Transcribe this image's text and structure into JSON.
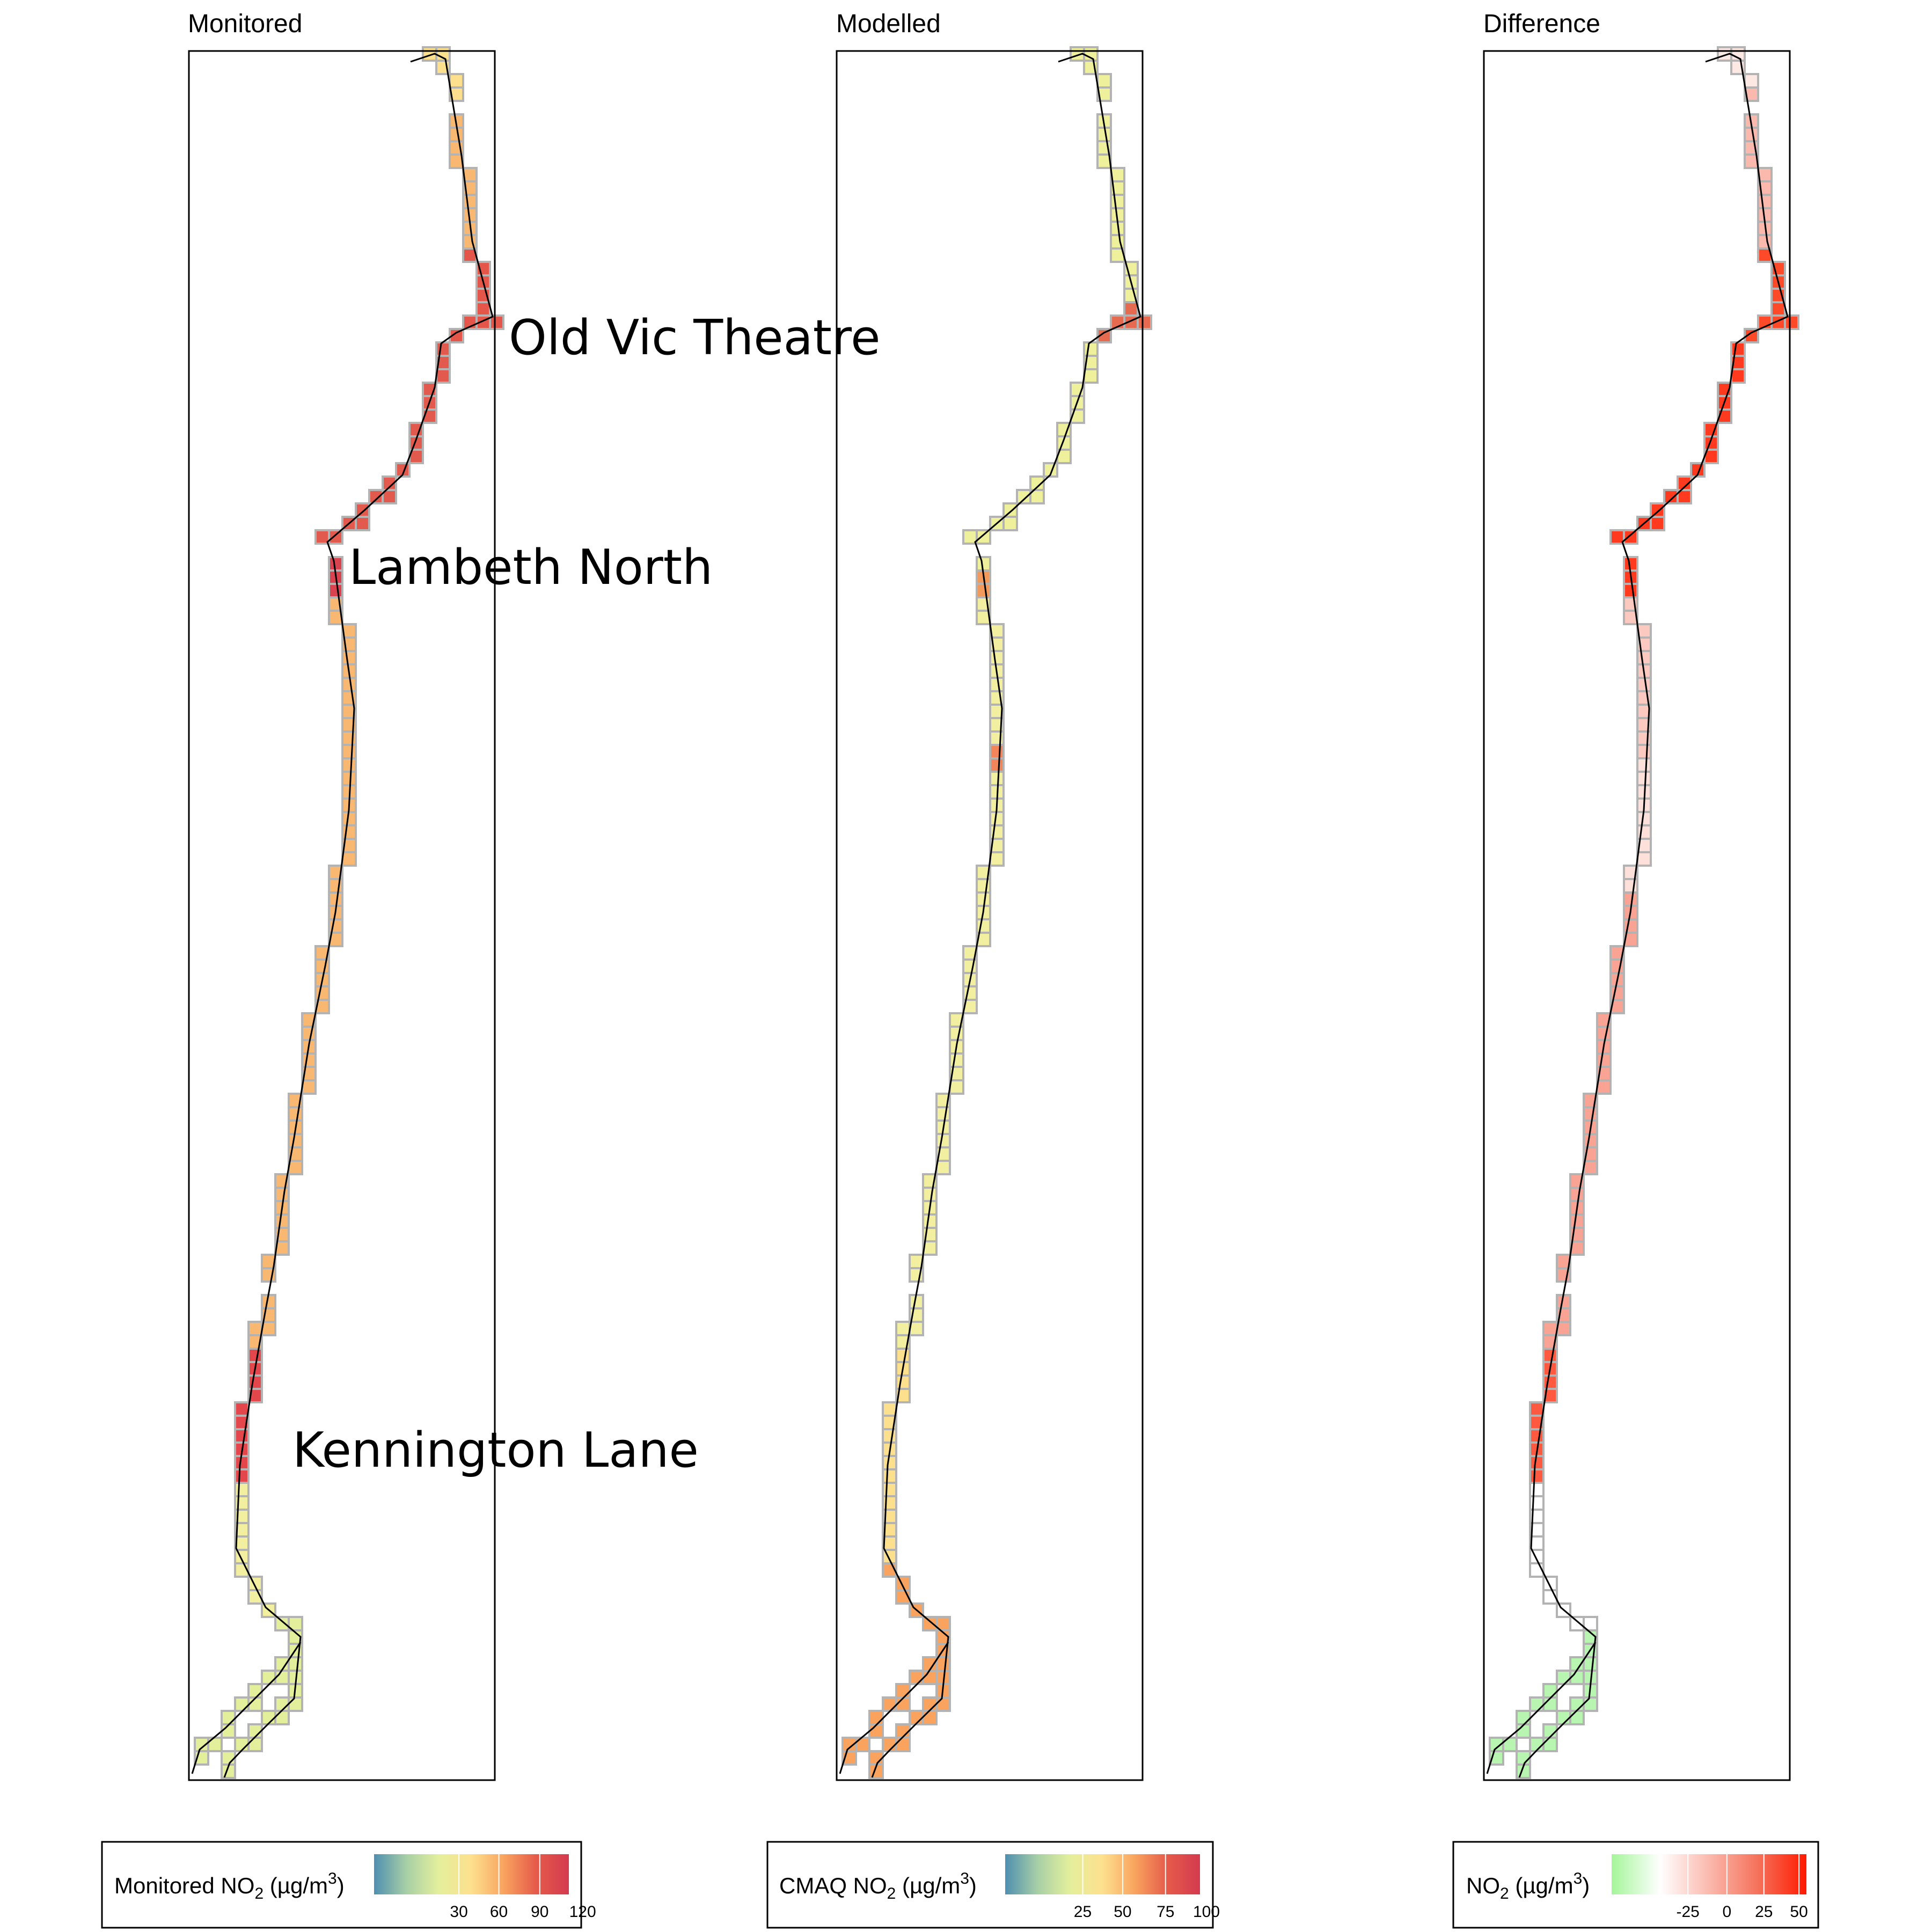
{
  "panels": [
    {
      "title": "Monitored",
      "legend": {
        "label_main": "Monitored NO",
        "label_sub": "2",
        "label_unit": " (µg/m",
        "label_sup": "3",
        "label_close": ")",
        "ticks": [
          "30",
          "60",
          "90",
          "120"
        ],
        "colors": [
          "#4f8fb0",
          "#a8cfa6",
          "#e4ef9c",
          "#fde08e",
          "#f9a35f",
          "#e55a4a",
          "#d43a4f"
        ]
      }
    },
    {
      "title": "Modelled",
      "legend": {
        "label_main": "CMAQ NO",
        "label_sub": "2",
        "label_unit": " (µg/m",
        "label_sup": "3",
        "label_close": ")",
        "ticks": [
          "25",
          "50",
          "75",
          "100"
        ],
        "colors": [
          "#4f8fb0",
          "#a8cfa6",
          "#e4ef9c",
          "#fde08e",
          "#f9a35f",
          "#e55a4a",
          "#d43a4f"
        ]
      }
    },
    {
      "title": "Difference",
      "legend": {
        "label_main": "NO",
        "label_sub": "2",
        "label_unit": " (µg/m",
        "label_sup": "3",
        "label_close": ")",
        "ticks": [
          "-25",
          "0",
          "25",
          "50"
        ],
        "colors": [
          "#a5f59a",
          "#ffffff",
          "#fbb9ae",
          "#f5725b",
          "#ff1a00"
        ]
      }
    }
  ],
  "places": [
    "Old Vic Theatre",
    "Lambeth North",
    "Kennington Lane"
  ],
  "colors": {
    "route_line": "#000000",
    "cell_border": "#b3b3b3",
    "frame": "#000000"
  }
}
